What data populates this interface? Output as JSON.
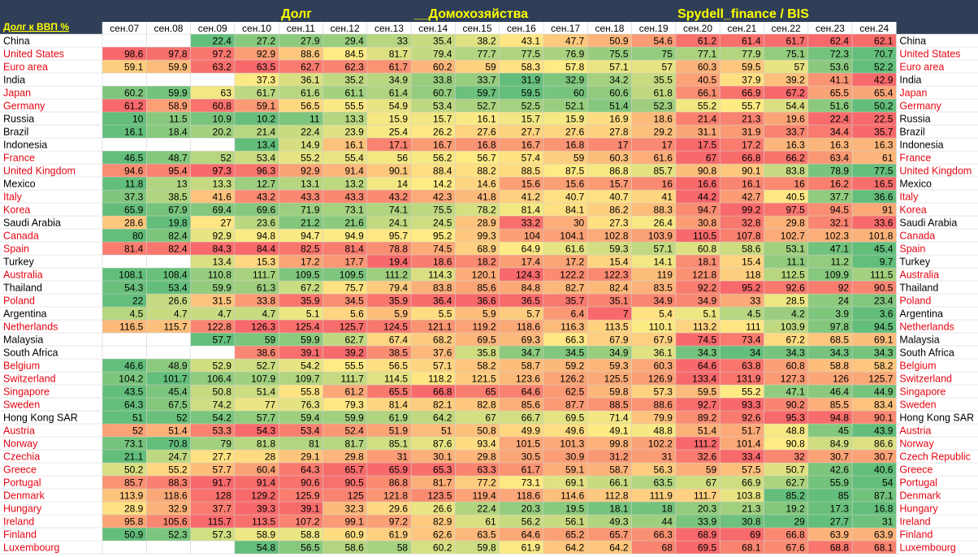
{
  "header": {
    "corner_label": "Долг к ВВП %",
    "title_parts": [
      "Долг",
      "__Домохозяйства",
      "Spydell_finance / BIS"
    ]
  },
  "colors": {
    "header_bg": "#2f3f57",
    "header_text": "#ffff00",
    "scale_low": "#63be7b",
    "scale_mid": "#ffeb84",
    "scale_high": "#f8696b",
    "country_red": "#e30613",
    "country_black": "#000000"
  },
  "chart_data": {
    "type": "heatmap",
    "color_scale": "per-row green-yellow-red (low to high)",
    "columns": [
      "сен.07",
      "сен.08",
      "сен.09",
      "сен.10",
      "сен.11",
      "сен.12",
      "сен.13",
      "сен.14",
      "сен.15",
      "сен.16",
      "сен.17",
      "сен.18",
      "сен.19",
      "сен.20",
      "сен.21",
      "сен.22",
      "сен.23",
      "сен.24"
    ],
    "rows": [
      {
        "country": "China",
        "red": false,
        "values": [
          null,
          null,
          22.4,
          27.2,
          27.9,
          29.4,
          33,
          35.4,
          38.2,
          43.1,
          47.7,
          50.9,
          54.6,
          61.2,
          61.4,
          61.7,
          62.4,
          62.1
        ]
      },
      {
        "country": "United States",
        "red": true,
        "values": [
          98.6,
          97.8,
          97.2,
          92.9,
          88.6,
          84.5,
          81.7,
          79.4,
          77.7,
          77.5,
          76.9,
          75.5,
          75,
          77.1,
          77.9,
          75.1,
          72.3,
          70.7
        ]
      },
      {
        "country": "Euro area",
        "red": true,
        "values": [
          59.1,
          59.9,
          63.2,
          63.5,
          62.7,
          62.3,
          61.7,
          60.2,
          59,
          58.3,
          57.8,
          57.1,
          57,
          60.3,
          59.5,
          57,
          53.6,
          52.2
        ]
      },
      {
        "country": "India",
        "red": false,
        "values": [
          null,
          null,
          null,
          37.3,
          36.1,
          35.2,
          34.9,
          33.8,
          33.7,
          31.9,
          32.9,
          34.2,
          35.5,
          40.5,
          37.9,
          39.2,
          41.1,
          42.9
        ]
      },
      {
        "country": "Japan",
        "red": true,
        "values": [
          60.2,
          59.9,
          63,
          61.7,
          61.6,
          61.1,
          61.4,
          60.7,
          59.7,
          59.5,
          60,
          60.6,
          61.8,
          66.1,
          66.9,
          67.2,
          65.5,
          65.4
        ]
      },
      {
        "country": "Germany",
        "red": true,
        "values": [
          61.2,
          58.9,
          60.8,
          59.1,
          56.5,
          55.5,
          54.9,
          53.4,
          52.7,
          52.5,
          52.1,
          51.4,
          52.3,
          55.2,
          55.7,
          54.4,
          51.6,
          50.2
        ]
      },
      {
        "country": "Russia",
        "red": false,
        "values": [
          10,
          11.5,
          10.9,
          10.2,
          11,
          13.3,
          15.9,
          15.7,
          16.1,
          15.7,
          15.9,
          16.9,
          18.6,
          21.4,
          21.3,
          19.6,
          22.4,
          22.5
        ]
      },
      {
        "country": "Brazil",
        "red": false,
        "values": [
          16.1,
          18.4,
          20.2,
          21.4,
          22.4,
          23.9,
          25.4,
          26.2,
          27.6,
          27.7,
          27.6,
          27.8,
          29.2,
          31.1,
          31.9,
          33.7,
          34.4,
          35.7
        ]
      },
      {
        "country": "Indonesia",
        "red": false,
        "values": [
          null,
          null,
          null,
          13.4,
          14.9,
          16.1,
          17.1,
          16.7,
          16.8,
          16.7,
          16.8,
          17,
          17,
          17.5,
          17.2,
          16.3,
          16.3,
          16.3
        ]
      },
      {
        "country": "France",
        "red": true,
        "values": [
          46.5,
          48.7,
          52,
          53.4,
          55.2,
          55.4,
          56,
          56.2,
          56.7,
          57.4,
          59,
          60.3,
          61.6,
          67,
          66.8,
          66.2,
          63.4,
          61
        ]
      },
      {
        "country": "United Kingdom",
        "red": true,
        "values": [
          94.6,
          95.4,
          97.3,
          96.3,
          92.9,
          91.4,
          90.1,
          88.4,
          88.2,
          88.5,
          87.5,
          86.8,
          85.7,
          90.8,
          90.1,
          83.8,
          78.9,
          77.5
        ]
      },
      {
        "country": "Mexico",
        "red": false,
        "values": [
          11.8,
          13,
          13.3,
          12.7,
          13.1,
          13.2,
          14,
          14.2,
          14.6,
          15.6,
          15.6,
          15.7,
          16,
          16.6,
          16.1,
          16,
          16.2,
          16.5
        ]
      },
      {
        "country": "Italy",
        "red": true,
        "values": [
          37.3,
          38.5,
          41.6,
          43.2,
          43.3,
          43.3,
          43.2,
          42.3,
          41.8,
          41.2,
          40.7,
          40.7,
          41,
          44.2,
          42.7,
          40.5,
          37.7,
          36.6
        ]
      },
      {
        "country": "Korea",
        "red": true,
        "values": [
          65.9,
          67.9,
          69.4,
          69.6,
          71.9,
          73.1,
          74.1,
          75.5,
          78.2,
          81.4,
          84.1,
          86.2,
          88.3,
          94.7,
          99.2,
          97.5,
          94.5,
          91
        ]
      },
      {
        "country": "Saudi Arabia",
        "red": false,
        "values": [
          28.6,
          19.8,
          27,
          23.6,
          21.2,
          21.6,
          24.1,
          24.5,
          28.9,
          33.2,
          30,
          27.3,
          26.4,
          30.8,
          32.8,
          29.8,
          32.1,
          33.6
        ]
      },
      {
        "country": "Canada",
        "red": true,
        "values": [
          80,
          82.4,
          92.9,
          94.8,
          94.7,
          94.9,
          95.7,
          95.2,
          99.3,
          104,
          104.1,
          102.8,
          103.9,
          110.5,
          107.8,
          102.7,
          102.3,
          101.8
        ]
      },
      {
        "country": "Spain",
        "red": true,
        "values": [
          81.4,
          82.4,
          84.3,
          84.4,
          82.5,
          81.4,
          78.8,
          74.5,
          68.9,
          64.9,
          61.6,
          59.3,
          57.1,
          60.8,
          58.6,
          53.1,
          47.1,
          45.4
        ]
      },
      {
        "country": "Turkey",
        "red": false,
        "values": [
          null,
          null,
          13.4,
          15.3,
          17.2,
          17.7,
          19.4,
          18.6,
          18.2,
          17.4,
          17.2,
          15.4,
          14.1,
          18.1,
          15.4,
          11.1,
          11.2,
          9.7
        ]
      },
      {
        "country": "Australia",
        "red": true,
        "values": [
          108.1,
          108.4,
          110.8,
          111.7,
          109.5,
          109.5,
          111.2,
          114.3,
          120.1,
          124.3,
          122.2,
          122.3,
          119,
          121.8,
          118,
          112.5,
          109.9,
          111.5
        ]
      },
      {
        "country": "Thailand",
        "red": false,
        "values": [
          54.3,
          53.4,
          59.9,
          61.3,
          67.2,
          75.7,
          79.4,
          83.8,
          85.6,
          84.8,
          82.7,
          82.4,
          83.5,
          92.2,
          95.2,
          92.6,
          92,
          90.5
        ]
      },
      {
        "country": "Poland",
        "red": true,
        "values": [
          22,
          26.6,
          31.5,
          33.8,
          35.9,
          34.5,
          35.9,
          36.4,
          36.6,
          36.5,
          35.7,
          35.1,
          34.9,
          34.9,
          33,
          28.5,
          24,
          23.4
        ]
      },
      {
        "country": "Argentina",
        "red": false,
        "values": [
          4.5,
          4.7,
          4.7,
          4.7,
          5.1,
          5.6,
          5.9,
          5.5,
          5.9,
          5.7,
          6.4,
          7,
          5.4,
          5.1,
          4.5,
          4.2,
          3.9,
          3.6
        ]
      },
      {
        "country": "Netherlands",
        "red": true,
        "values": [
          116.5,
          115.7,
          122.8,
          126.3,
          125.4,
          125.7,
          124.5,
          121.1,
          119.2,
          118.6,
          116.3,
          113.5,
          110.1,
          113.2,
          111,
          103.9,
          97.8,
          94.5
        ]
      },
      {
        "country": "Malaysia",
        "red": false,
        "values": [
          null,
          null,
          57.7,
          59,
          59.9,
          62.7,
          67.4,
          68.2,
          69.5,
          69.3,
          66.3,
          67.9,
          67.9,
          74.5,
          73.4,
          67.2,
          68.5,
          69.1
        ]
      },
      {
        "country": "South Africa",
        "red": false,
        "values": [
          null,
          null,
          null,
          38.6,
          39.1,
          39.2,
          38.5,
          37.6,
          35.8,
          34.7,
          34.5,
          34.9,
          36.1,
          34.3,
          34,
          34.3,
          34.3,
          34.3
        ]
      },
      {
        "country": "Belgium",
        "red": true,
        "values": [
          46.6,
          48.9,
          52.9,
          52.7,
          54.2,
          55.5,
          56.5,
          57.1,
          58.2,
          58.7,
          59.2,
          59.3,
          60.3,
          64.6,
          63.8,
          60.8,
          58.8,
          58.2
        ]
      },
      {
        "country": "Switzerland",
        "red": true,
        "values": [
          104.2,
          101.7,
          106.4,
          107.9,
          109.7,
          111.7,
          114.5,
          118.2,
          121.5,
          123.6,
          126.2,
          125.5,
          126.9,
          133.4,
          131.9,
          127.3,
          126,
          125.7
        ]
      },
      {
        "country": "Singapore",
        "red": true,
        "values": [
          43.5,
          45.4,
          50.8,
          51.4,
          55.8,
          61.2,
          65.5,
          66.8,
          65,
          64.6,
          62.5,
          59.8,
          57.3,
          59.5,
          55.2,
          47.1,
          46.4,
          44.9
        ]
      },
      {
        "country": "Sweden",
        "red": true,
        "values": [
          64.3,
          67.5,
          74.2,
          77,
          76.3,
          79.3,
          81.4,
          82.1,
          82.8,
          85.6,
          87.7,
          88.5,
          88.6,
          92.7,
          93.3,
          90.2,
          85.5,
          83.4
        ]
      },
      {
        "country": "Hong Kong SAR",
        "red": false,
        "values": [
          51,
          52,
          54.2,
          57.7,
          59.4,
          59.9,
          61.9,
          64.2,
          67,
          66.7,
          69.5,
          71.4,
          79.9,
          89.2,
          92.6,
          95.3,
          94.8,
          90.1
        ]
      },
      {
        "country": "Austria",
        "red": true,
        "values": [
          52,
          51.4,
          53.3,
          54.3,
          53.4,
          52.4,
          51.9,
          51,
          50.8,
          49.9,
          49.6,
          49.1,
          48.8,
          51.4,
          51.7,
          48.8,
          45,
          43.9
        ]
      },
      {
        "country": "Norway",
        "red": true,
        "values": [
          73.1,
          70.8,
          79,
          81.8,
          81,
          81.7,
          85.1,
          87.6,
          93.4,
          101.5,
          101.3,
          99.8,
          102.2,
          111.2,
          101.4,
          90.8,
          84.9,
          86.6
        ]
      },
      {
        "country": "Czechia",
        "red": true,
        "values": [
          21.1,
          24.7,
          27.7,
          28,
          29.1,
          29.8,
          31,
          30.1,
          29.8,
          30.5,
          30.9,
          31.2,
          31,
          32.6,
          33.4,
          32,
          30.7,
          30.7
        ]
      },
      {
        "country": "Greece",
        "red": true,
        "values": [
          50.2,
          55.2,
          57.7,
          60.4,
          64.3,
          65.7,
          65.9,
          65.3,
          63.3,
          61.7,
          59.1,
          58.7,
          56.3,
          59,
          57.5,
          50.7,
          42.6,
          40.6
        ]
      },
      {
        "country": "Portugal",
        "red": true,
        "values": [
          85.7,
          88.3,
          91.7,
          91.4,
          90.6,
          90.5,
          86.8,
          81.7,
          77.2,
          73.1,
          69.1,
          66.1,
          63.5,
          67,
          66.9,
          62.7,
          55.9,
          54
        ]
      },
      {
        "country": "Denmark",
        "red": true,
        "values": [
          113.9,
          118.6,
          128,
          129.2,
          125.9,
          125,
          121.8,
          123.5,
          119.4,
          118.6,
          114.6,
          112.8,
          111.9,
          111.7,
          103.8,
          85.2,
          85,
          87.1
        ]
      },
      {
        "country": "Hungary",
        "red": true,
        "values": [
          28.9,
          32.9,
          37.7,
          39.3,
          39.1,
          32.3,
          29.6,
          26.6,
          22.4,
          20.3,
          19.5,
          18.1,
          18,
          20.3,
          21.3,
          19.2,
          17.3,
          16.8
        ]
      },
      {
        "country": "Ireland",
        "red": true,
        "values": [
          95.8,
          105.6,
          115.7,
          113.5,
          107.2,
          99.1,
          97.2,
          82.9,
          61,
          56.2,
          56.1,
          49.3,
          44,
          33.9,
          30.8,
          29,
          27.7,
          31
        ]
      },
      {
        "country": "Finland",
        "red": true,
        "values": [
          50.9,
          52.3,
          57.3,
          58.9,
          58.8,
          60.9,
          61.9,
          62.6,
          63.5,
          64.6,
          65.2,
          65.7,
          66.3,
          68.9,
          69,
          66.8,
          63.9,
          63.9
        ]
      },
      {
        "country": "Luxembourg",
        "red": true,
        "values": [
          null,
          null,
          null,
          54.8,
          56.5,
          58.6,
          58,
          60.2,
          59.8,
          61.9,
          64.2,
          64.2,
          68,
          69.5,
          68.1,
          67.6,
          68.8,
          68.1
        ]
      }
    ],
    "right_labels_override": {
      "Czechia": "Czech Republic"
    }
  }
}
